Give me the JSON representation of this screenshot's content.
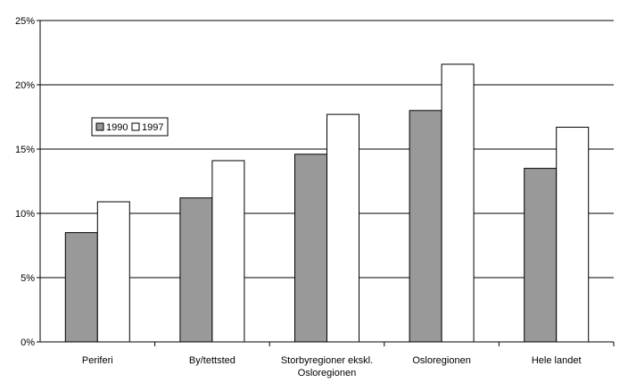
{
  "chart_data": {
    "type": "bar",
    "title": "",
    "xlabel": "",
    "ylabel": "",
    "categories": [
      [
        "Periferi"
      ],
      [
        "By/tettsted"
      ],
      [
        "Storbyregioner ekskl.",
        "Osloregionen"
      ],
      [
        "Osloregionen"
      ],
      [
        "Hele landet"
      ]
    ],
    "series": [
      {
        "name": "1990",
        "values": [
          8.5,
          11.2,
          14.6,
          18.0,
          13.5
        ],
        "color": "#999999"
      },
      {
        "name": "1997",
        "values": [
          10.9,
          14.1,
          17.7,
          21.6,
          16.7
        ],
        "color": "#ffffff"
      }
    ],
    "ylim": [
      0,
      25
    ],
    "yticks": [
      0,
      5,
      10,
      15,
      20,
      25
    ],
    "ytick_labels": [
      "0%",
      "5%",
      "10%",
      "15%",
      "20%",
      "25%"
    ],
    "grid": true,
    "legend_position": "upper-left, inside plot"
  }
}
